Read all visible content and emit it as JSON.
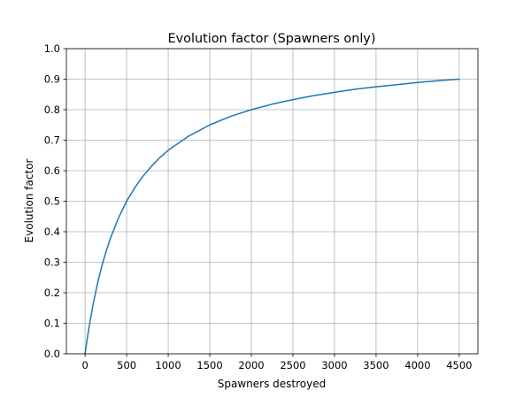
{
  "chart_data": {
    "type": "line",
    "title": "Evolution factor (Spawners only)",
    "xlabel": "Spawners destroyed",
    "ylabel": "Evolution factor",
    "xlim": [
      -225,
      4725
    ],
    "ylim": [
      0.0,
      1.0
    ],
    "xticks": [
      0,
      500,
      1000,
      1500,
      2000,
      2500,
      3000,
      3500,
      4000,
      4500
    ],
    "yticks": [
      0.0,
      0.1,
      0.2,
      0.3,
      0.4,
      0.5,
      0.6,
      0.7,
      0.8,
      0.9,
      1.0
    ],
    "grid": true,
    "series": [
      {
        "color": "#1f77b4",
        "x": [
          0,
          25,
          50,
          100,
          150,
          200,
          250,
          300,
          400,
          500,
          600,
          700,
          800,
          900,
          1000,
          1250,
          1500,
          1750,
          2000,
          2250,
          2500,
          2750,
          3000,
          3250,
          3500,
          3750,
          4000,
          4250,
          4500
        ],
        "y": [
          0.0,
          0.048,
          0.091,
          0.167,
          0.231,
          0.286,
          0.333,
          0.375,
          0.444,
          0.5,
          0.545,
          0.583,
          0.615,
          0.643,
          0.667,
          0.714,
          0.75,
          0.778,
          0.8,
          0.818,
          0.833,
          0.846,
          0.857,
          0.867,
          0.875,
          0.882,
          0.889,
          0.895,
          0.9
        ]
      }
    ]
  },
  "colors": {
    "line": "#1f77b4",
    "grid": "#b0b0b0",
    "axis": "#000000"
  }
}
